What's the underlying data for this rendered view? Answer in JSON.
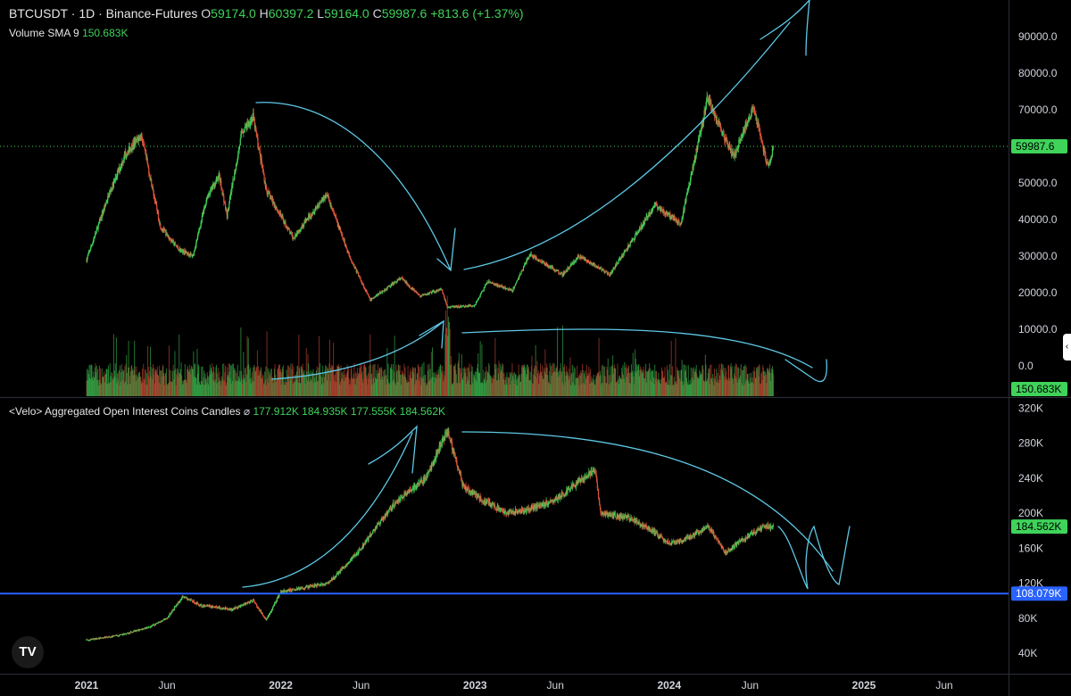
{
  "header": {
    "symbol": "BTCUSDT",
    "interval": "1D",
    "exchange": "Binance-Futures",
    "o_label": "O",
    "o_value": "59174.0",
    "h_label": "H",
    "h_value": "60397.2",
    "l_label": "L",
    "l_value": "59164.0",
    "c_label": "C",
    "c_value": "59987.6",
    "change": "+813.6 (+1.37%)"
  },
  "volume_legend": {
    "label": "Volume SMA 9",
    "value": "150.683K"
  },
  "oi_legend": {
    "label": "<Velo> Aggregated Open Interest Coins Candles",
    "symbol": "⌀",
    "o": "177.912K",
    "h": "184.935K",
    "l": "177.555K",
    "c": "184.562K"
  },
  "colors": {
    "up": "#3fd35a",
    "down": "#e0533a",
    "background": "#000000",
    "annotation": "#5ec8e6",
    "level_line": "#2962ff"
  },
  "icons": {
    "logo": "tradingview-logo-icon",
    "collapse": "chevron-left-icon"
  },
  "logo_text": "TV",
  "collapse_glyph": "‹",
  "chart_data": [
    {
      "type": "candlestick",
      "title": "BTCUSDT · 1D · Binance-Futures",
      "y_ticks": [
        "90000.0",
        "80000.0",
        "70000.0",
        "60000.0",
        "50000.0",
        "40000.0",
        "30000.0",
        "20000.0",
        "10000.0",
        "0.0"
      ],
      "ylim": [
        0,
        95000
      ],
      "x_ticks": [
        "2021",
        "Jun",
        "2022",
        "Jun",
        "2023",
        "Jun",
        "2024",
        "Jun",
        "2025",
        "Jun"
      ],
      "x_tick_dates": [
        "2021-01-01",
        "2021-06-01",
        "2022-01-01",
        "2022-06-01",
        "2023-01-01",
        "2023-06-01",
        "2024-01-01",
        "2024-06-01",
        "2025-01-01",
        "2025-06-01"
      ],
      "last_price": "59987.6",
      "volume_sma_tag": "150.683K",
      "approx_close_path": [
        [
          "2021-01-01",
          29000
        ],
        [
          "2021-02-10",
          46000
        ],
        [
          "2021-03-15",
          58000
        ],
        [
          "2021-04-14",
          63000
        ],
        [
          "2021-05-20",
          38000
        ],
        [
          "2021-06-22",
          32000
        ],
        [
          "2021-07-20",
          30000
        ],
        [
          "2021-08-15",
          46000
        ],
        [
          "2021-09-07",
          52000
        ],
        [
          "2021-09-22",
          41000
        ],
        [
          "2021-10-20",
          64000
        ],
        [
          "2021-11-10",
          68000
        ],
        [
          "2021-12-05",
          48000
        ],
        [
          "2022-01-24",
          35000
        ],
        [
          "2022-03-28",
          47000
        ],
        [
          "2022-05-10",
          30000
        ],
        [
          "2022-06-18",
          18000
        ],
        [
          "2022-08-15",
          24000
        ],
        [
          "2022-09-20",
          19000
        ],
        [
          "2022-10-30",
          21000
        ],
        [
          "2022-11-10",
          16000
        ],
        [
          "2022-12-31",
          16500
        ],
        [
          "2023-01-25",
          23000
        ],
        [
          "2023-03-12",
          20500
        ],
        [
          "2023-04-14",
          30500
        ],
        [
          "2023-06-15",
          25000
        ],
        [
          "2023-07-15",
          30000
        ],
        [
          "2023-09-11",
          25000
        ],
        [
          "2023-10-25",
          34500
        ],
        [
          "2023-12-05",
          44000
        ],
        [
          "2024-01-23",
          39000
        ],
        [
          "2024-03-13",
          73000
        ],
        [
          "2024-05-01",
          57000
        ],
        [
          "2024-06-07",
          71000
        ],
        [
          "2024-07-05",
          54000
        ],
        [
          "2024-07-15",
          59987.6
        ]
      ]
    },
    {
      "type": "candlestick",
      "title": "<Velo> Aggregated Open Interest Coins Candles",
      "y_ticks": [
        "320K",
        "280K",
        "240K",
        "200K",
        "160K",
        "120K",
        "80K",
        "40K"
      ],
      "ylim": [
        15000,
        325000
      ],
      "last_value": "184.562K",
      "level_line_value": "108.079K",
      "approx_close_path": [
        [
          "2021-01-01",
          55000
        ],
        [
          "2021-03-01",
          60000
        ],
        [
          "2021-05-01",
          70000
        ],
        [
          "2021-06-01",
          80000
        ],
        [
          "2021-07-01",
          105000
        ],
        [
          "2021-08-01",
          95000
        ],
        [
          "2021-10-01",
          90000
        ],
        [
          "2021-11-10",
          100000
        ],
        [
          "2021-12-05",
          78000
        ],
        [
          "2022-01-01",
          110000
        ],
        [
          "2022-02-15",
          115000
        ],
        [
          "2022-04-01",
          120000
        ],
        [
          "2022-06-01",
          160000
        ],
        [
          "2022-08-01",
          210000
        ],
        [
          "2022-10-01",
          240000
        ],
        [
          "2022-11-10",
          295000
        ],
        [
          "2022-12-10",
          230000
        ],
        [
          "2023-01-15",
          215000
        ],
        [
          "2023-03-01",
          200000
        ],
        [
          "2023-04-15",
          205000
        ],
        [
          "2023-06-01",
          215000
        ],
        [
          "2023-08-15",
          250000
        ],
        [
          "2023-08-25",
          200000
        ],
        [
          "2023-10-15",
          195000
        ],
        [
          "2023-12-01",
          180000
        ],
        [
          "2024-01-01",
          165000
        ],
        [
          "2024-02-01",
          170000
        ],
        [
          "2024-03-15",
          185000
        ],
        [
          "2024-04-15",
          155000
        ],
        [
          "2024-06-01",
          175000
        ],
        [
          "2024-06-25",
          185000
        ],
        [
          "2024-07-15",
          184562
        ]
      ]
    }
  ]
}
